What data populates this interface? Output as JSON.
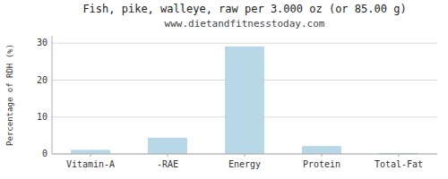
{
  "chart_data": {
    "type": "bar",
    "title": "Fish, pike, walleye, raw per 3.000 oz (or 85.00 g)",
    "subtitle": "www.dietandfitnesstoday.com",
    "categories": [
      "Vitamin-A",
      "-RAE",
      "Energy",
      "Protein",
      "Total-Fat"
    ],
    "values": [
      1.0,
      4.3,
      29.0,
      2.0,
      0.2
    ],
    "color": "#b8d8e8",
    "ylabel": "Percentage of RDH (%)",
    "ylim": [
      0,
      32
    ],
    "yticks": [
      0,
      10,
      20,
      30
    ],
    "grid": true
  }
}
